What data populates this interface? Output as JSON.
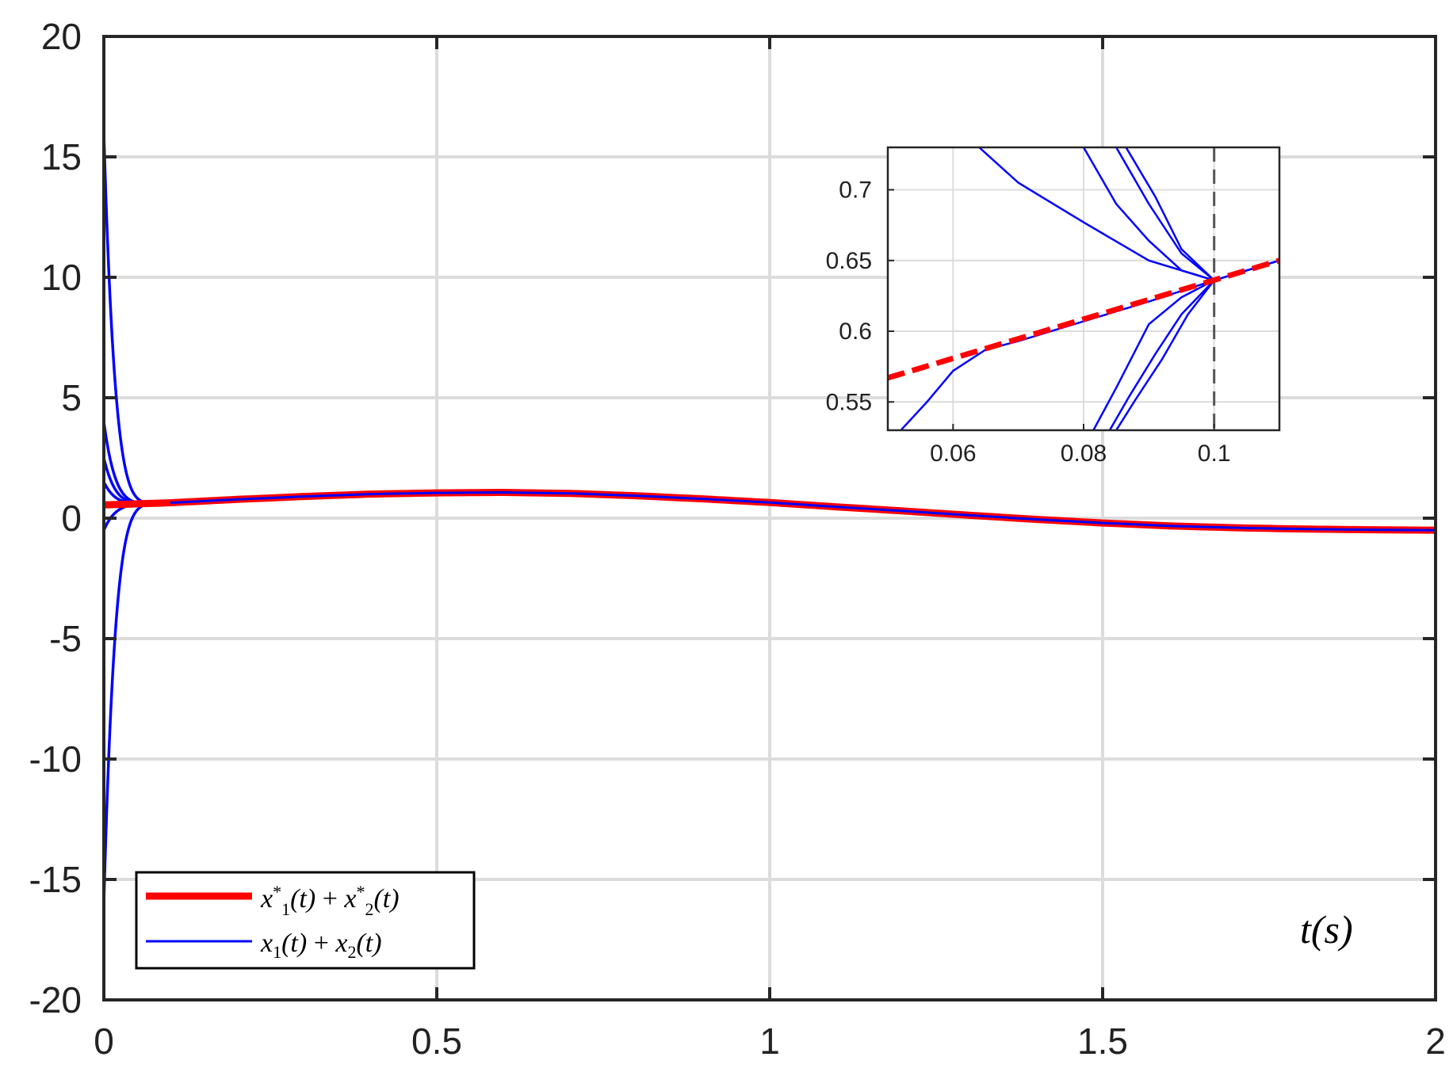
{
  "chart_data": [
    {
      "type": "line",
      "panel": "main",
      "xlim": [
        0,
        2
      ],
      "ylim": [
        -20,
        20
      ],
      "xticks": [
        "0",
        "0.5",
        "1",
        "1.5",
        "2"
      ],
      "yticks": [
        "20",
        "15",
        "10",
        "5",
        "0",
        "-5",
        "-10",
        "-15",
        "-20"
      ],
      "grid": true,
      "legend_position": "bottom-left",
      "axis_annotation": "t(s)",
      "series": [
        {
          "name": "x1*(t) + x2*(t)",
          "color": "#ff0000",
          "style": "solid-thick",
          "x": [
            0,
            0.1,
            0.2,
            0.3,
            0.4,
            0.5,
            0.6,
            0.7,
            0.8,
            0.9,
            1.0,
            1.1,
            1.2,
            1.3,
            1.4,
            1.5,
            1.6,
            1.7,
            1.8,
            1.9,
            2.0
          ],
          "y": [
            0.55,
            0.64,
            0.78,
            0.9,
            1.0,
            1.05,
            1.07,
            1.03,
            0.93,
            0.8,
            0.65,
            0.47,
            0.3,
            0.12,
            -0.05,
            -0.2,
            -0.32,
            -0.4,
            -0.45,
            -0.48,
            -0.5
          ]
        },
        {
          "name": "x1(t) + x2(t)",
          "color": "#0000ff",
          "style": "solid-thin",
          "initial_values": [
            16,
            4.0,
            2.5,
            1.5,
            -0.5,
            -16
          ],
          "x": [
            0,
            0.1,
            0.2,
            0.3,
            0.4,
            0.5,
            0.6,
            0.7,
            0.8,
            0.9,
            1.0,
            1.1,
            1.2,
            1.3,
            1.4,
            1.5,
            1.6,
            1.7,
            1.8,
            1.9,
            2.0
          ],
          "y": [
            16,
            0.64,
            0.78,
            0.9,
            1.0,
            1.05,
            1.07,
            1.03,
            0.93,
            0.8,
            0.65,
            0.47,
            0.3,
            0.12,
            -0.05,
            -0.2,
            -0.32,
            -0.4,
            -0.45,
            -0.48,
            -0.5
          ]
        }
      ]
    },
    {
      "type": "line",
      "panel": "inset",
      "xlim": [
        0.05,
        0.11
      ],
      "ylim": [
        0.53,
        0.73
      ],
      "xticks": [
        "0.06",
        "0.08",
        "0.1"
      ],
      "yticks": [
        "0.7",
        "0.65",
        "0.6",
        "0.55"
      ],
      "grid": true,
      "vline_x": 0.1,
      "series": [
        {
          "name": "x1*(t) + x2*(t)",
          "color": "#ff0000",
          "style": "dashed-thick",
          "x": [
            0.05,
            0.11
          ],
          "y": [
            0.567,
            0.65
          ]
        },
        {
          "name": "x1(t) + x2(t)",
          "color": "#0000ff",
          "style": "solid-thin",
          "lines": [
            {
              "x": [
                0.064,
                0.07,
                0.08,
                0.09,
                0.1,
                0.11
              ],
              "y": [
                0.73,
                0.705,
                0.677,
                0.65,
                0.636,
                0.65
              ]
            },
            {
              "x": [
                0.08,
                0.085,
                0.09,
                0.095,
                0.1
              ],
              "y": [
                0.73,
                0.69,
                0.664,
                0.643,
                0.636
              ]
            },
            {
              "x": [
                0.085,
                0.09,
                0.095,
                0.1
              ],
              "y": [
                0.73,
                0.69,
                0.655,
                0.636
              ]
            },
            {
              "x": [
                0.0865,
                0.091,
                0.095,
                0.1
              ],
              "y": [
                0.73,
                0.695,
                0.658,
                0.636
              ]
            },
            {
              "x": [
                0.052,
                0.056,
                0.06,
                0.065,
                0.07,
                0.08,
                0.09,
                0.1,
                0.11
              ],
              "y": [
                0.53,
                0.55,
                0.572,
                0.587,
                0.593,
                0.607,
                0.621,
                0.636,
                0.65
              ]
            },
            {
              "x": [
                0.0815,
                0.085,
                0.09,
                0.095,
                0.1
              ],
              "y": [
                0.53,
                0.56,
                0.605,
                0.624,
                0.636
              ]
            },
            {
              "x": [
                0.084,
                0.087,
                0.091,
                0.095,
                0.1
              ],
              "y": [
                0.53,
                0.554,
                0.584,
                0.612,
                0.636
              ]
            },
            {
              "x": [
                0.085,
                0.088,
                0.092,
                0.096,
                0.1
              ],
              "y": [
                0.53,
                0.552,
                0.58,
                0.612,
                0.636
              ]
            }
          ]
        }
      ]
    }
  ]
}
